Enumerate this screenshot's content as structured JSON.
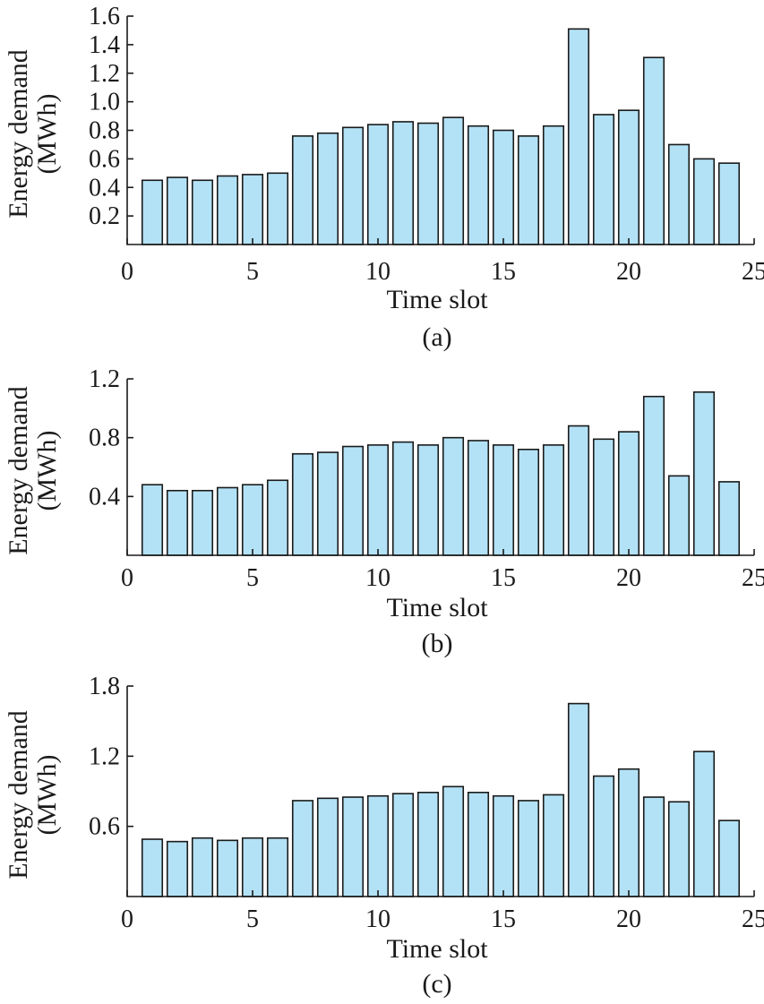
{
  "chart_data": [
    {
      "type": "bar",
      "caption": "(a)",
      "xlabel": "Time slot",
      "ylabel": [
        "Energy demand",
        "(MWh)"
      ],
      "xlim": [
        0,
        25
      ],
      "ylim": [
        0,
        1.6
      ],
      "xticks": [
        "0",
        "5",
        "10",
        "15",
        "20",
        "25"
      ],
      "yticks": [
        "0.2",
        "0.4",
        "0.6",
        "0.8",
        "1.0",
        "1.2",
        "1.4",
        "1.6"
      ],
      "x": [
        1,
        2,
        3,
        4,
        5,
        6,
        7,
        8,
        9,
        10,
        11,
        12,
        13,
        14,
        15,
        16,
        17,
        18,
        19,
        20,
        21,
        22,
        23,
        24
      ],
      "values": [
        0.45,
        0.47,
        0.45,
        0.48,
        0.49,
        0.5,
        0.76,
        0.78,
        0.82,
        0.84,
        0.86,
        0.85,
        0.89,
        0.83,
        0.8,
        0.76,
        0.83,
        1.51,
        0.91,
        0.94,
        1.31,
        0.7,
        0.6,
        0.57
      ]
    },
    {
      "type": "bar",
      "caption": "(b)",
      "xlabel": "Time slot",
      "ylabel": [
        "Energy demand",
        "(MWh)"
      ],
      "xlim": [
        0,
        25
      ],
      "ylim": [
        0,
        1.2
      ],
      "xticks": [
        "0",
        "5",
        "10",
        "15",
        "20",
        "25"
      ],
      "yticks": [
        "0.4",
        "0.8",
        "1.2"
      ],
      "x": [
        1,
        2,
        3,
        4,
        5,
        6,
        7,
        8,
        9,
        10,
        11,
        12,
        13,
        14,
        15,
        16,
        17,
        18,
        19,
        20,
        21,
        22,
        23,
        24
      ],
      "values": [
        0.48,
        0.44,
        0.44,
        0.46,
        0.48,
        0.51,
        0.69,
        0.7,
        0.74,
        0.75,
        0.77,
        0.75,
        0.8,
        0.78,
        0.75,
        0.72,
        0.75,
        0.88,
        0.79,
        0.84,
        1.08,
        0.54,
        1.11,
        0.5
      ]
    },
    {
      "type": "bar",
      "caption": "(c)",
      "xlabel": "Time slot",
      "ylabel": [
        "Energy demand",
        "(MWh)"
      ],
      "xlim": [
        0,
        25
      ],
      "ylim": [
        0,
        1.8
      ],
      "xticks": [
        "0",
        "5",
        "10",
        "15",
        "20",
        "25"
      ],
      "yticks": [
        "0.6",
        "1.2",
        "1.8"
      ],
      "x": [
        1,
        2,
        3,
        4,
        5,
        6,
        7,
        8,
        9,
        10,
        11,
        12,
        13,
        14,
        15,
        16,
        17,
        18,
        19,
        20,
        21,
        22,
        23,
        24
      ],
      "values": [
        0.49,
        0.47,
        0.5,
        0.48,
        0.5,
        0.5,
        0.82,
        0.84,
        0.85,
        0.86,
        0.88,
        0.89,
        0.94,
        0.89,
        0.86,
        0.82,
        0.87,
        1.65,
        1.03,
        1.09,
        0.85,
        0.81,
        1.24,
        0.65
      ]
    }
  ],
  "style": {
    "bar_fill": "#b3e2f6",
    "ink": "#1a1a1a"
  }
}
